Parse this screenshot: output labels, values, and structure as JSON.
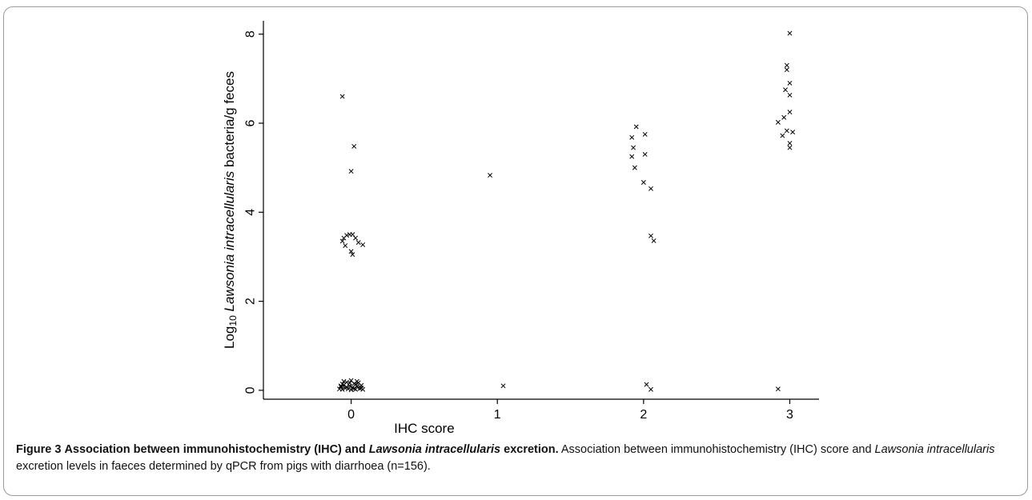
{
  "figure": {
    "caption_label": "Figure 3",
    "caption_title_parts": [
      "Association between immunohistochemistry (IHC) and ",
      "Lawsonia intracellularis",
      " excretion."
    ],
    "caption_body_parts": [
      " Association between immunohistochemistry (IHC) score and ",
      "Lawsonia intracellularis",
      " excretion levels in faeces determined by qPCR from pigs with diarrhoea (n=156)."
    ]
  },
  "chart_data": {
    "type": "scatter",
    "marker": "x",
    "xlabel": "IHC score",
    "ylabel_parts": [
      "Log",
      "10",
      " ",
      "Lawsonia intracellularis",
      " bacteria/g feces"
    ],
    "xlim": [
      -0.6,
      3.2
    ],
    "ylim": [
      -0.2,
      8.3
    ],
    "xticks": [
      0,
      1,
      2,
      3
    ],
    "xtick_labels": [
      "0",
      "1",
      "2",
      "3"
    ],
    "yticks": [
      0,
      2,
      4,
      6,
      8
    ],
    "ytick_labels": [
      "0",
      "2",
      "4",
      "6",
      "8"
    ],
    "grid": false,
    "points": [
      {
        "x": -0.06,
        "y": 6.6
      },
      {
        "x": 0.02,
        "y": 5.48
      },
      {
        "x": 0.0,
        "y": 4.92
      },
      {
        "x": -0.06,
        "y": 3.35
      },
      {
        "x": -0.04,
        "y": 3.25
      },
      {
        "x": -0.05,
        "y": 3.42
      },
      {
        "x": -0.03,
        "y": 3.48
      },
      {
        "x": -0.01,
        "y": 3.5
      },
      {
        "x": 0.01,
        "y": 3.5
      },
      {
        "x": 0.03,
        "y": 3.42
      },
      {
        "x": 0.05,
        "y": 3.32
      },
      {
        "x": 0.08,
        "y": 3.27
      },
      {
        "x": 0.0,
        "y": 3.12
      },
      {
        "x": 0.01,
        "y": 3.05
      },
      {
        "x": -0.08,
        "y": 0.03
      },
      {
        "x": -0.07,
        "y": 0.08
      },
      {
        "x": -0.06,
        "y": 0.02
      },
      {
        "x": -0.05,
        "y": 0.12
      },
      {
        "x": -0.04,
        "y": 0.05
      },
      {
        "x": -0.03,
        "y": 0.18
      },
      {
        "x": -0.02,
        "y": 0.03
      },
      {
        "x": -0.01,
        "y": 0.1
      },
      {
        "x": 0.0,
        "y": 0.22
      },
      {
        "x": 0.01,
        "y": 0.06
      },
      {
        "x": 0.02,
        "y": 0.15
      },
      {
        "x": 0.03,
        "y": 0.02
      },
      {
        "x": 0.04,
        "y": 0.09
      },
      {
        "x": 0.05,
        "y": 0.17
      },
      {
        "x": 0.06,
        "y": 0.04
      },
      {
        "x": 0.07,
        "y": 0.11
      },
      {
        "x": 0.08,
        "y": 0.02
      },
      {
        "x": -0.06,
        "y": 0.14
      },
      {
        "x": -0.03,
        "y": 0.07
      },
      {
        "x": 0.0,
        "y": 0.01
      },
      {
        "x": 0.03,
        "y": 0.13
      },
      {
        "x": 0.06,
        "y": 0.08
      },
      {
        "x": -0.05,
        "y": 0.2
      },
      {
        "x": 0.04,
        "y": 0.2
      },
      {
        "x": -0.01,
        "y": 0.16
      },
      {
        "x": 0.02,
        "y": 0.04
      },
      {
        "x": -0.07,
        "y": 0.1
      },
      {
        "x": 0.07,
        "y": 0.05
      },
      {
        "x": 0.95,
        "y": 4.83
      },
      {
        "x": 1.04,
        "y": 0.1
      },
      {
        "x": 1.95,
        "y": 5.92
      },
      {
        "x": 1.92,
        "y": 5.68
      },
      {
        "x": 1.93,
        "y": 5.45
      },
      {
        "x": 1.92,
        "y": 5.25
      },
      {
        "x": 1.94,
        "y": 5.0
      },
      {
        "x": 2.01,
        "y": 5.75
      },
      {
        "x": 2.01,
        "y": 5.3
      },
      {
        "x": 2.0,
        "y": 4.67
      },
      {
        "x": 2.05,
        "y": 4.53
      },
      {
        "x": 2.05,
        "y": 3.47
      },
      {
        "x": 2.07,
        "y": 3.36
      },
      {
        "x": 2.02,
        "y": 0.13
      },
      {
        "x": 2.05,
        "y": 0.02
      },
      {
        "x": 3.0,
        "y": 8.02
      },
      {
        "x": 2.98,
        "y": 7.3
      },
      {
        "x": 2.98,
        "y": 7.2
      },
      {
        "x": 3.0,
        "y": 6.9
      },
      {
        "x": 2.97,
        "y": 6.75
      },
      {
        "x": 3.0,
        "y": 6.63
      },
      {
        "x": 3.0,
        "y": 6.25
      },
      {
        "x": 2.96,
        "y": 6.13
      },
      {
        "x": 2.92,
        "y": 6.02
      },
      {
        "x": 2.98,
        "y": 5.83
      },
      {
        "x": 3.02,
        "y": 5.8
      },
      {
        "x": 2.95,
        "y": 5.72
      },
      {
        "x": 3.0,
        "y": 5.55
      },
      {
        "x": 3.0,
        "y": 5.45
      },
      {
        "x": 2.92,
        "y": 0.03
      }
    ]
  }
}
